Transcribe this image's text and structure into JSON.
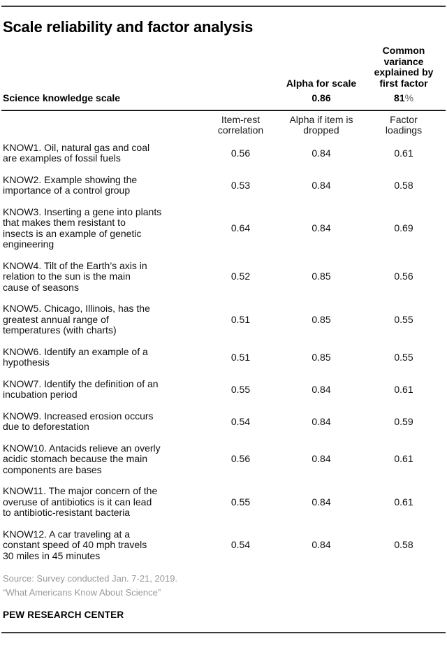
{
  "title": "Scale reliability and factor analysis",
  "summary_header": {
    "alpha_label": "Alpha for scale",
    "variance_label": "Common\nvariance\nexplained by\nfirst factor"
  },
  "summary_row": {
    "label": "Science knowledge scale",
    "alpha_value": "0.86",
    "variance_value": "81",
    "variance_unit": "%"
  },
  "subcolumns": {
    "item_rest": "Item-rest\ncorrelation",
    "alpha_dropped": "Alpha if item is\ndropped",
    "factor_loadings": "Factor\nloadings"
  },
  "rows": [
    {
      "label": "KNOW1. Oil, natural gas and coal\nare examples of fossil fuels",
      "item_rest": "0.56",
      "alpha_dropped": "0.84",
      "factor_loading": "0.61"
    },
    {
      "label": "KNOW2. Example showing the\nimportance of a control group",
      "item_rest": "0.53",
      "alpha_dropped": "0.84",
      "factor_loading": "0.58"
    },
    {
      "label": "KNOW3. Inserting a gene into plants\nthat makes them resistant to\ninsects is an example of genetic\nengineering",
      "item_rest": "0.64",
      "alpha_dropped": "0.84",
      "factor_loading": "0.69"
    },
    {
      "label": "KNOW4. Tilt of the Earth’s axis in\nrelation to the sun is the main\ncause of seasons",
      "item_rest": "0.52",
      "alpha_dropped": "0.85",
      "factor_loading": "0.56"
    },
    {
      "label": "KNOW5. Chicago, Illinois, has the\ngreatest annual range of\ntemperatures (with charts)",
      "item_rest": "0.51",
      "alpha_dropped": "0.85",
      "factor_loading": "0.55"
    },
    {
      "label": "KNOW6. Identify an example of a\nhypothesis",
      "item_rest": "0.51",
      "alpha_dropped": "0.85",
      "factor_loading": "0.55"
    },
    {
      "label": "KNOW7. Identify the definition of an\nincubation period",
      "item_rest": "0.55",
      "alpha_dropped": "0.84",
      "factor_loading": "0.61"
    },
    {
      "label": "KNOW9. Increased erosion occurs\ndue to deforestation",
      "item_rest": "0.54",
      "alpha_dropped": "0.84",
      "factor_loading": "0.59"
    },
    {
      "label": "KNOW10. Antacids relieve an overly\nacidic stomach because the main\ncomponents are bases",
      "item_rest": "0.56",
      "alpha_dropped": "0.84",
      "factor_loading": "0.61"
    },
    {
      "label": "KNOW11. The major concern of the\noveruse of antibiotics is it can lead\nto antibiotic-resistant bacteria",
      "item_rest": "0.55",
      "alpha_dropped": "0.84",
      "factor_loading": "0.61"
    },
    {
      "label": "KNOW12. A car traveling at a\nconstant speed of 40 mph travels\n30 miles in 45 minutes",
      "item_rest": "0.54",
      "alpha_dropped": "0.84",
      "factor_loading": "0.58"
    }
  ],
  "source_line1": "Source: Survey conducted Jan. 7-21, 2019.",
  "source_line2": "“What Americans Know About Science”",
  "branding": "PEW RESEARCH CENTER",
  "colors": {
    "text": "#111111",
    "muted": "#9a9a9a",
    "rule": "#3b3b3b"
  },
  "chart_data": {
    "type": "table",
    "title": "Scale reliability and factor analysis",
    "scale_summary": {
      "label": "Science knowledge scale",
      "alpha_for_scale": 0.86,
      "common_variance_explained_by_first_factor_pct": 81
    },
    "columns": [
      "Item-rest correlation",
      "Alpha if item is dropped",
      "Factor loadings"
    ],
    "items": [
      {
        "id": "KNOW1",
        "item_rest_correlation": 0.56,
        "alpha_if_item_dropped": 0.84,
        "factor_loading": 0.61
      },
      {
        "id": "KNOW2",
        "item_rest_correlation": 0.53,
        "alpha_if_item_dropped": 0.84,
        "factor_loading": 0.58
      },
      {
        "id": "KNOW3",
        "item_rest_correlation": 0.64,
        "alpha_if_item_dropped": 0.84,
        "factor_loading": 0.69
      },
      {
        "id": "KNOW4",
        "item_rest_correlation": 0.52,
        "alpha_if_item_dropped": 0.85,
        "factor_loading": 0.56
      },
      {
        "id": "KNOW5",
        "item_rest_correlation": 0.51,
        "alpha_if_item_dropped": 0.85,
        "factor_loading": 0.55
      },
      {
        "id": "KNOW6",
        "item_rest_correlation": 0.51,
        "alpha_if_item_dropped": 0.85,
        "factor_loading": 0.55
      },
      {
        "id": "KNOW7",
        "item_rest_correlation": 0.55,
        "alpha_if_item_dropped": 0.84,
        "factor_loading": 0.61
      },
      {
        "id": "KNOW9",
        "item_rest_correlation": 0.54,
        "alpha_if_item_dropped": 0.84,
        "factor_loading": 0.59
      },
      {
        "id": "KNOW10",
        "item_rest_correlation": 0.56,
        "alpha_if_item_dropped": 0.84,
        "factor_loading": 0.61
      },
      {
        "id": "KNOW11",
        "item_rest_correlation": 0.55,
        "alpha_if_item_dropped": 0.84,
        "factor_loading": 0.61
      },
      {
        "id": "KNOW12",
        "item_rest_correlation": 0.54,
        "alpha_if_item_dropped": 0.84,
        "factor_loading": 0.58
      }
    ]
  }
}
